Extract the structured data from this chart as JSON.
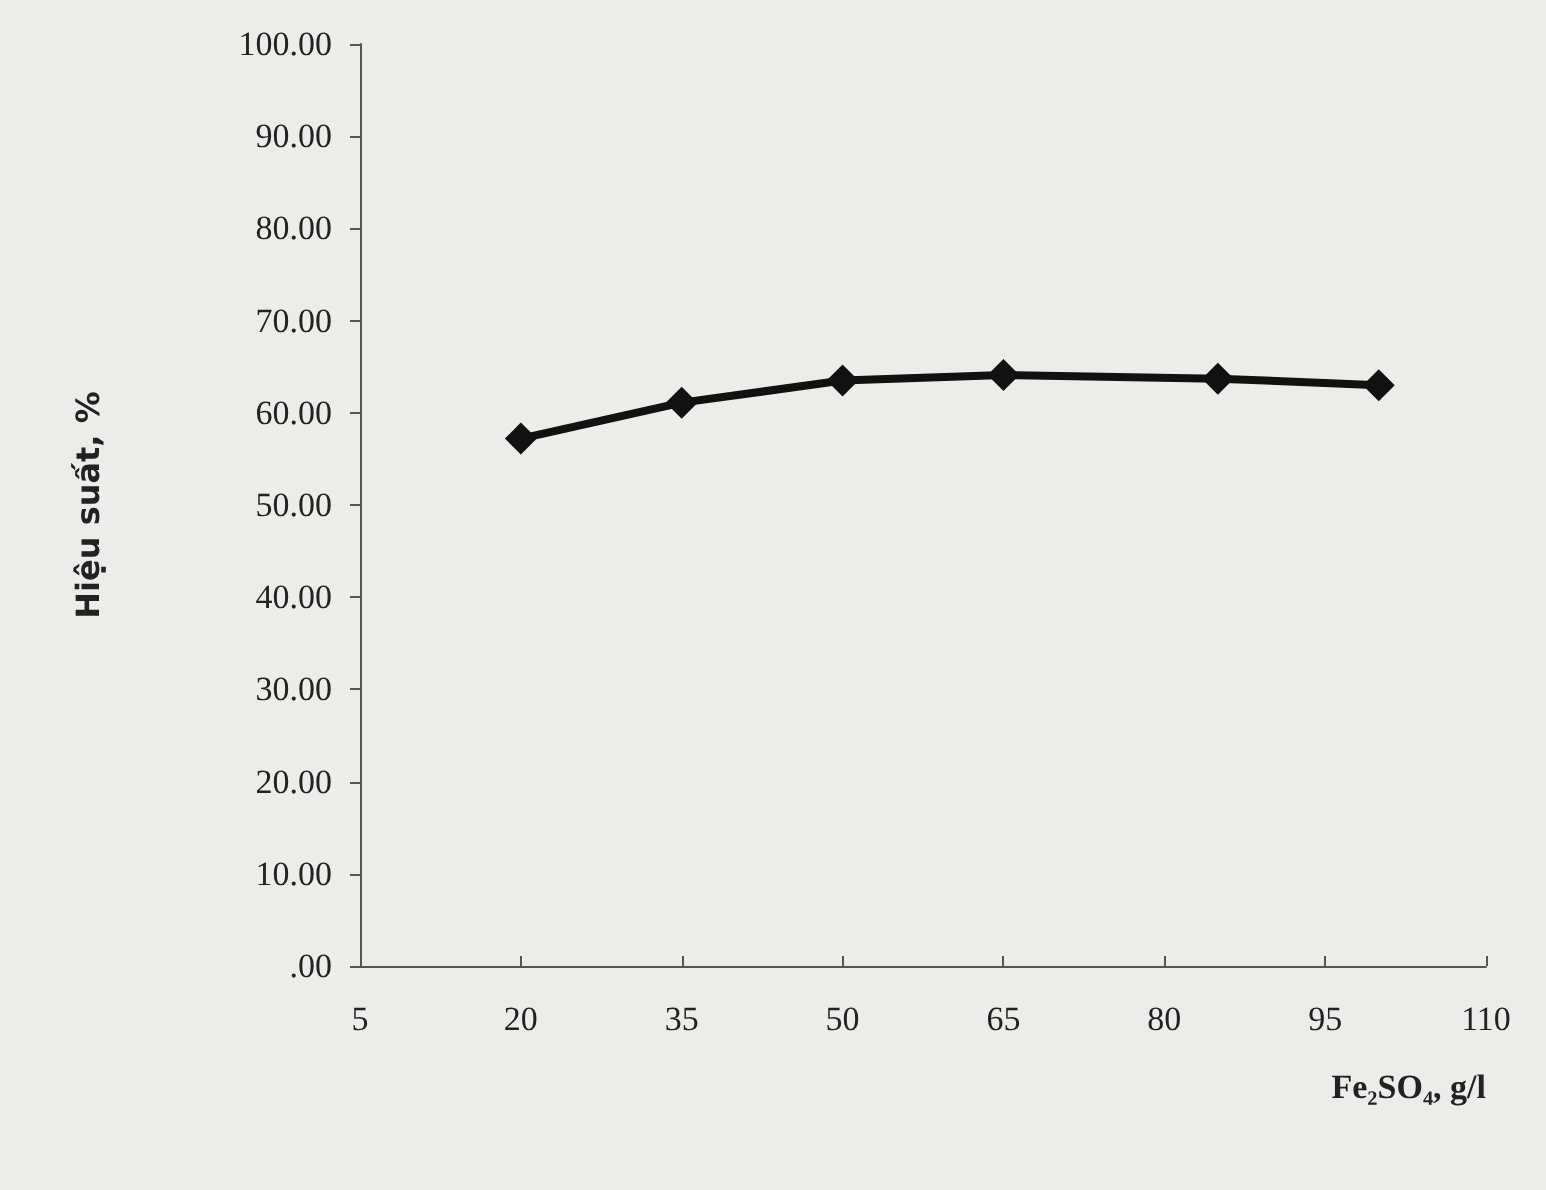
{
  "chart_data": {
    "type": "line",
    "xlabel": "Fe₂SO₄, g/l",
    "ylabel": "Hiệu suất, %",
    "x": [
      20,
      35,
      50,
      65,
      85,
      100
    ],
    "series": [
      {
        "color": "#111111",
        "values": [
          57.2,
          61.1,
          63.5,
          64.1,
          63.7,
          63.0
        ]
      }
    ],
    "xlim": [
      5,
      110
    ],
    "xticks": [
      5,
      20,
      35,
      50,
      65,
      80,
      95,
      110
    ],
    "ylim": [
      0,
      100
    ],
    "yticks": [
      {
        "value": 0,
        "label": ".00"
      },
      {
        "value": 10,
        "label": "10.00"
      },
      {
        "value": 20,
        "label": "20.00"
      },
      {
        "value": 30,
        "label": "30.00"
      },
      {
        "value": 40,
        "label": "40.00"
      },
      {
        "value": 50,
        "label": "50.00"
      },
      {
        "value": 60,
        "label": "60.00"
      },
      {
        "value": 70,
        "label": "70.00"
      },
      {
        "value": 80,
        "label": "80.00"
      },
      {
        "value": 90,
        "label": "90.00"
      },
      {
        "value": 100,
        "label": "100.00"
      }
    ],
    "marker": "diamond",
    "line_style": "solid"
  }
}
